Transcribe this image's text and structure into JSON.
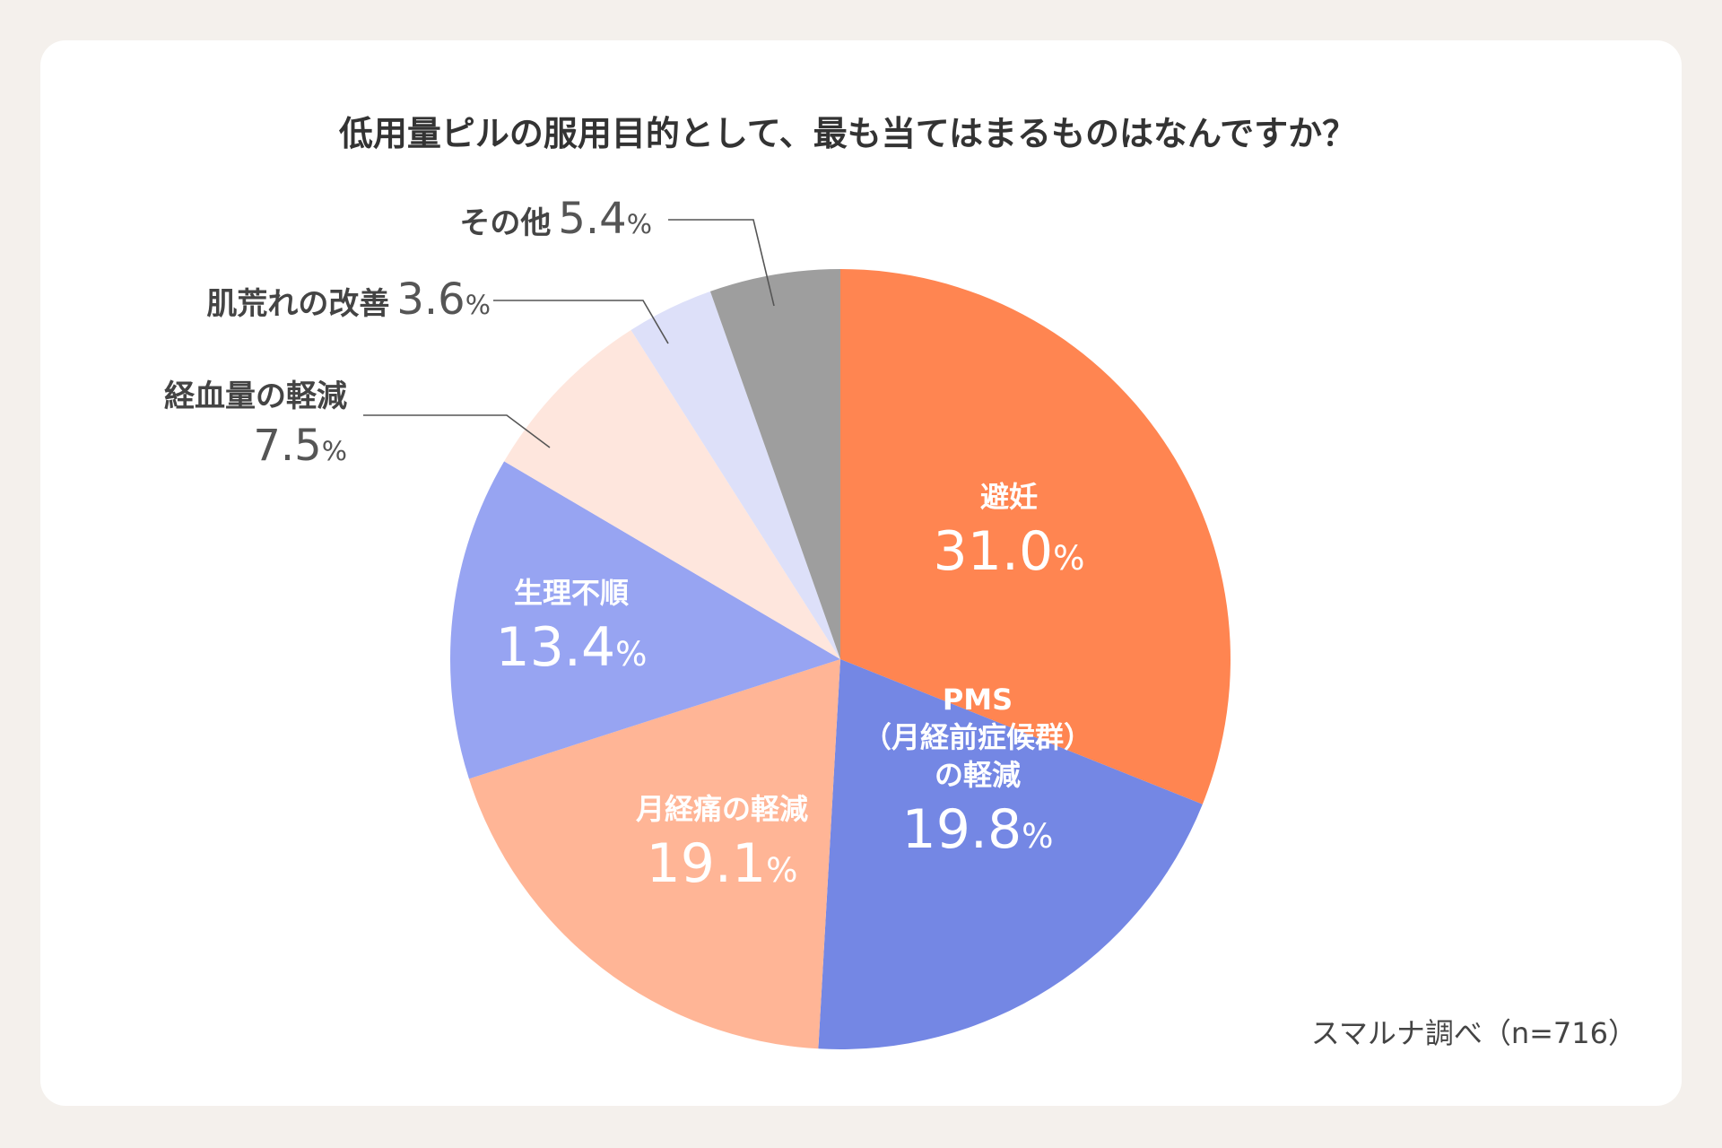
{
  "chart_data": {
    "type": "pie",
    "title": "低用量ピルの服用目的として、最も当てはまるものはなんですか？",
    "unit": "%",
    "slices": [
      {
        "label": "避妊",
        "value": 31.0,
        "color": "#ff8551"
      },
      {
        "label": "PMS（月経前症候群）の軽減",
        "label_lines": [
          "PMS",
          "（月経前症候群）",
          "の軽減"
        ],
        "value": 19.8,
        "color": "#7487e4"
      },
      {
        "label": "月経痛の軽減",
        "value": 19.1,
        "color": "#ffb596"
      },
      {
        "label": "生理不順",
        "value": 13.4,
        "color": "#97a4f2"
      },
      {
        "label": "経血量の軽減",
        "value": 7.5,
        "color": "#fee6dd"
      },
      {
        "label": "肌荒れの改善",
        "value": 3.6,
        "color": "#dde0f9"
      },
      {
        "label": "その他",
        "value": 5.4,
        "color": "#9e9e9e"
      }
    ],
    "start_angle_deg": 0,
    "direction": "clockwise",
    "source": "スマルナ調べ（n=716）"
  }
}
